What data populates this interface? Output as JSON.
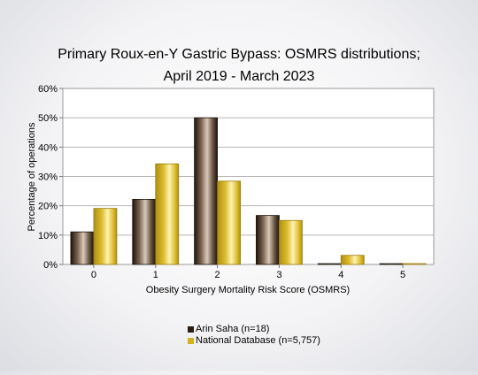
{
  "chart_data": {
    "type": "bar",
    "title_lines": [
      "Primary Roux-en-Y Gastric Bypass: OSMRS distributions;",
      "April 2019 - March 2023"
    ],
    "xlabel": "Obesity Surgery Mortality Risk Score (OSMRS)",
    "ylabel": "Percentage of operations",
    "categories": [
      "0",
      "1",
      "2",
      "3",
      "4",
      "5"
    ],
    "y_ticks": [
      "0%",
      "10%",
      "20%",
      "30%",
      "40%",
      "50%",
      "60%"
    ],
    "ylim": [
      0,
      60
    ],
    "grid": true,
    "legend_position": "bottom",
    "series": [
      {
        "name": "Arin Saha (n=18)",
        "values": [
          11.1,
          22.2,
          50.0,
          16.7,
          0.0,
          0.0
        ],
        "color": "#3a2a1f"
      },
      {
        "name": "National Database (n=5,757)",
        "values": [
          19.1,
          34.3,
          28.4,
          15.0,
          3.1,
          0.3
        ],
        "color": "#d4b21f"
      }
    ]
  }
}
